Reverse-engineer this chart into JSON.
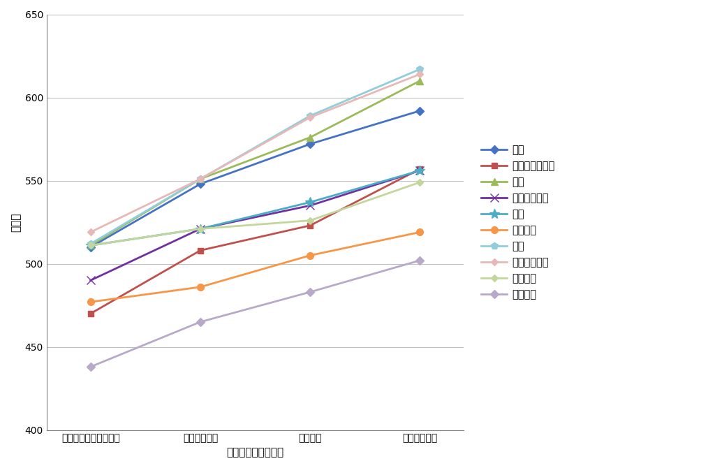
{
  "x_labels": [
    "まったくそう思わない",
    "そう思わない",
    "そう思う",
    "強くそう思う"
  ],
  "xlabel": "私は、理科が好きだ",
  "ylabel": "平均点",
  "ylim": [
    400,
    650
  ],
  "yticks": [
    400,
    450,
    500,
    550,
    600,
    650
  ],
  "series": [
    {
      "name": "日本",
      "color": "#4472C4",
      "marker": "D",
      "markersize": 6,
      "linewidth": 2.0,
      "values": [
        510,
        548,
        572,
        592
      ]
    },
    {
      "name": "オーストラリア",
      "color": "#C0504D",
      "marker": "s",
      "markersize": 6,
      "linewidth": 2.0,
      "values": [
        470,
        508,
        523,
        557
      ]
    },
    {
      "name": "台湾",
      "color": "#9BBB59",
      "marker": "^",
      "markersize": 7,
      "linewidth": 2.0,
      "values": [
        511,
        551,
        576,
        610
      ]
    },
    {
      "name": "イングランド",
      "color": "#7030A0",
      "marker": "x",
      "markersize": 8,
      "linewidth": 2.0,
      "values": [
        490,
        521,
        535,
        556
      ]
    },
    {
      "name": "香港",
      "color": "#4BACC6",
      "marker": "*",
      "markersize": 10,
      "linewidth": 2.0,
      "values": [
        511,
        521,
        537,
        556
      ]
    },
    {
      "name": "イタリア",
      "color": "#F79646",
      "marker": "o",
      "markersize": 7,
      "linewidth": 2.0,
      "values": [
        477,
        486,
        505,
        519
      ]
    },
    {
      "name": "韓国",
      "color": "#92CDDC",
      "marker": "p",
      "markersize": 7,
      "linewidth": 2.0,
      "values": [
        512,
        551,
        589,
        617
      ]
    },
    {
      "name": "シンガポール",
      "color": "#E6B9B8",
      "marker": "D",
      "markersize": 5,
      "linewidth": 2.0,
      "values": [
        519,
        551,
        588,
        614
      ]
    },
    {
      "name": "アメリカ",
      "color": "#C3D69B",
      "marker": "D",
      "markersize": 5,
      "linewidth": 2.0,
      "values": [
        511,
        521,
        526,
        549
      ]
    },
    {
      "name": "国際平均",
      "color": "#B8A9C9",
      "marker": "D",
      "markersize": 6,
      "linewidth": 2.0,
      "values": [
        438,
        465,
        483,
        502
      ]
    }
  ],
  "background_color": "#FFFFFF",
  "grid_color": "#C0C0C0",
  "label_fontsize": 11,
  "tick_fontsize": 10,
  "legend_fontsize": 10.5
}
